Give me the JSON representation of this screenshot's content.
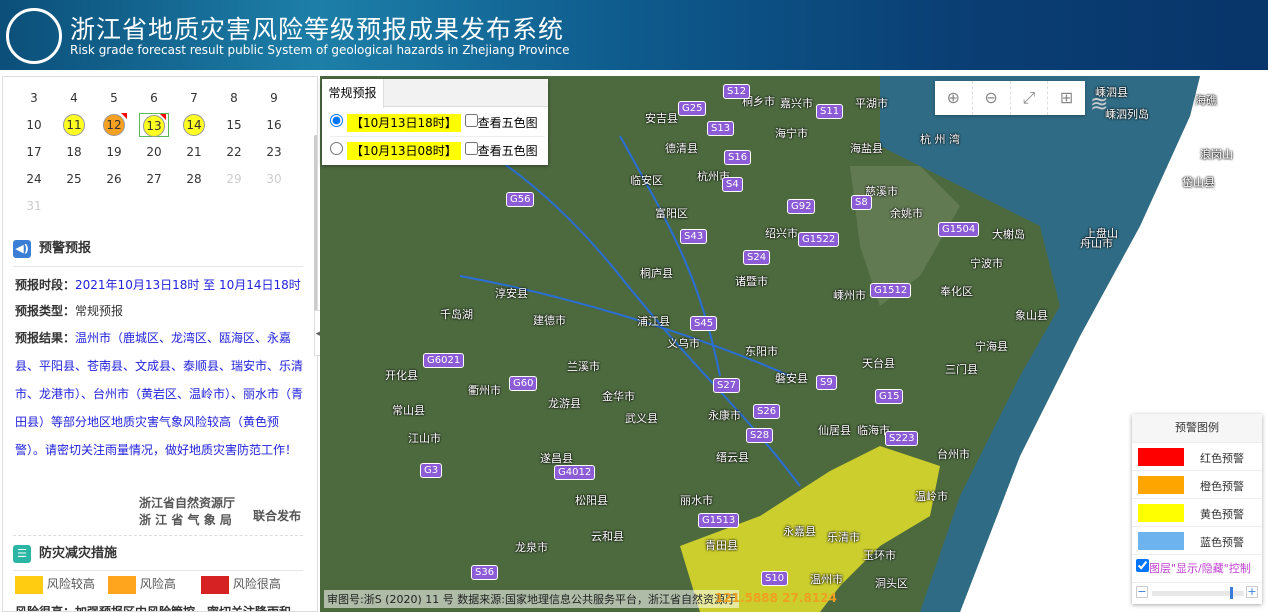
{
  "header": {
    "title": "浙江省地质灾害风险等级预报成果发布系统",
    "subtitle": "Risk grade forecast result public System of geological hazards in Zhejiang Province"
  },
  "calendar": {
    "days": [
      {
        "d": "3"
      },
      {
        "d": "4"
      },
      {
        "d": "5"
      },
      {
        "d": "6"
      },
      {
        "d": "7"
      },
      {
        "d": "8"
      },
      {
        "d": "9"
      },
      {
        "d": "10"
      },
      {
        "d": "11",
        "level": "yellow"
      },
      {
        "d": "12",
        "level": "orange",
        "flag": true
      },
      {
        "d": "13",
        "level": "yellow",
        "flag": true,
        "selected": true
      },
      {
        "d": "14",
        "level": "yellow"
      },
      {
        "d": "15"
      },
      {
        "d": "16"
      },
      {
        "d": "17"
      },
      {
        "d": "18"
      },
      {
        "d": "19"
      },
      {
        "d": "20"
      },
      {
        "d": "21"
      },
      {
        "d": "22"
      },
      {
        "d": "23"
      },
      {
        "d": "24"
      },
      {
        "d": "25"
      },
      {
        "d": "26"
      },
      {
        "d": "27"
      },
      {
        "d": "28"
      },
      {
        "d": "29",
        "dim": true
      },
      {
        "d": "30",
        "dim": true
      },
      {
        "d": "31",
        "dim": true
      }
    ]
  },
  "warning": {
    "title": "预警预报",
    "period_label": "预报时段：",
    "period": "2021年10月13日18时 至 10月14日18时",
    "type_label": "预报类型：",
    "type": "常规预报",
    "result_label": "预报结果：",
    "result": "温州市（鹿城区、龙湾区、瓯海区、永嘉县、平阳县、苍南县、文成县、泰顺县、瑞安市、乐清市、龙港市）、台州市（黄岩区、温岭市）、丽水市（青田县）等部分地区地质灾害气象风险较高（黄色预警）。请密切关注雨量情况，做好地质灾害防范工作！",
    "issuer1": "浙江省自然资源厅",
    "issuer2": "浙 江 省 气 象 局",
    "joint": "联合发布"
  },
  "measures": {
    "title": "防灾减灾措施",
    "levels": [
      {
        "label": "风险较高",
        "color": "#ffcc11"
      },
      {
        "label": "风险高",
        "color": "#ffa41c"
      },
      {
        "label": "风险很高",
        "color": "#d62222"
      }
    ],
    "partial": "风险很高：加强预报区内风险管控，密切关注降雨和"
  },
  "forecast_panel": {
    "tab": "常规预报",
    "options": [
      {
        "date": "【10月13日18时】",
        "checked": true,
        "five_color": "查看五色图"
      },
      {
        "date": "【10月13日08时】",
        "checked": false,
        "five_color": "查看五色图"
      }
    ]
  },
  "map": {
    "tools": [
      "zoom-in",
      "zoom-out",
      "full-extent",
      "select-area"
    ],
    "labels": [
      "桐乡市",
      "嘉兴市",
      "平湖市",
      "安吉县",
      "海宁市",
      "德清县",
      "海盐县",
      "临安区",
      "杭州市",
      "慈溪市",
      "余姚市",
      "富阳区",
      "绍兴市",
      "舟山市",
      "宁波市",
      "桐庐县",
      "淳安县",
      "诸暨市",
      "嵊州市",
      "奉化区",
      "建德市",
      "浦江县",
      "象山县",
      "义乌市",
      "宁海县",
      "兰溪市",
      "开化县",
      "东阳市",
      "天台县",
      "三门县",
      "磐安县",
      "金华市",
      "衢州市",
      "龙游县",
      "常山县",
      "武义县",
      "永康市",
      "仙居县",
      "临海市",
      "江山市",
      "缙云县",
      "台州市",
      "遂昌县",
      "温岭市",
      "松阳县",
      "丽水市",
      "玉环市",
      "乐清市",
      "永嘉县",
      "青田县",
      "云和县",
      "龙泉市",
      "温州市",
      "洞头区",
      "嵊泗县",
      "嵊泗列岛",
      "海礁",
      "岱山县",
      "浪岗山",
      "上盘山",
      "大榭岛",
      "杭 州 湾",
      "千岛湖"
    ],
    "highways": [
      "G25",
      "S12",
      "S13",
      "S11",
      "S16",
      "S4",
      "G56",
      "G92",
      "S8",
      "S43",
      "G1522",
      "G1504",
      "S24",
      "G1512",
      "S45",
      "G6021",
      "G60",
      "S27",
      "S9",
      "G15",
      "S26",
      "S28",
      "S223",
      "G3",
      "G4012",
      "G1513",
      "S10",
      "S36"
    ],
    "footer": "审图号:浙S (2020) 11 号 数据来源:国家地理信息公共服务平台，浙江省自然资源厅",
    "coord": "121.5888  27.8124"
  },
  "legend": {
    "title": "预警图例",
    "items": [
      {
        "label": "红色预警",
        "color": "#ff0000"
      },
      {
        "label": "橙色预警",
        "color": "#ffa500"
      },
      {
        "label": "黄色预警",
        "color": "#ffff00"
      },
      {
        "label": "蓝色预警",
        "color": "#6db3ee"
      }
    ],
    "layer_toggle": "图层\"显示/隐藏\"控制",
    "layer_checked": true,
    "opacity": 0.85
  }
}
